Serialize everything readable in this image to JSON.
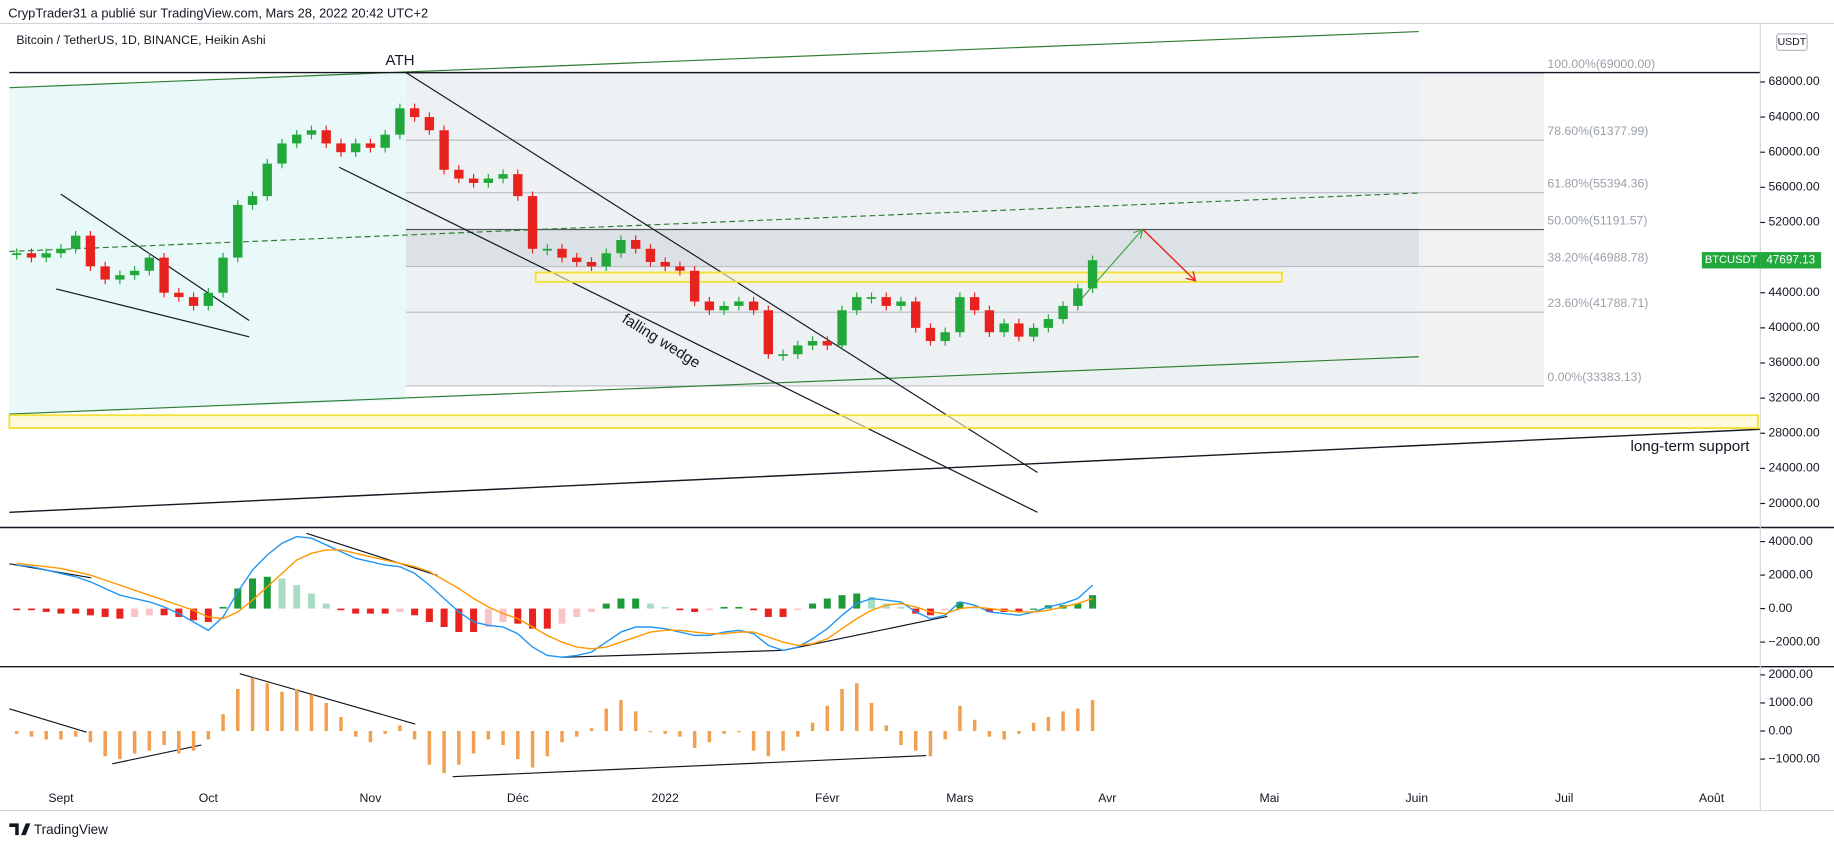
{
  "header": "CrypTrader31 a publié sur TradingView.com, Mars 28, 2022 20:42 UTC+2",
  "footer": "TradingView",
  "chart_data": [
    {
      "type": "candlestick",
      "title": "Bitcoin / TetherUS, 1D, BINANCE, Heikin Ashi",
      "currency": "USDT",
      "symbol_tag": "BTCUSDT",
      "up_color": "#22a83a",
      "down_color": "#e8221e",
      "annotations": [
        "ATH",
        "falling wedge",
        "long-term support"
      ],
      "categories": [
        null,
        null,
        null,
        "Sept",
        null,
        null,
        null,
        null,
        null,
        null,
        null,
        null,
        null,
        "Oct",
        null,
        null,
        null,
        null,
        null,
        null,
        null,
        null,
        null,
        null,
        "Nov",
        null,
        null,
        null,
        null,
        null,
        null,
        null,
        null,
        null,
        "Déc",
        null,
        null,
        null,
        null,
        null,
        null,
        null,
        null,
        null,
        "2022",
        null,
        null,
        null,
        null,
        null,
        null,
        null,
        null,
        null,
        null,
        "Févr",
        null,
        null,
        null,
        null,
        null,
        null,
        null,
        null,
        "Mars",
        null,
        null,
        null,
        null,
        null,
        null,
        null,
        null,
        null,
        "Avr",
        null,
        null,
        null,
        null,
        null,
        null,
        null,
        null,
        null,
        null,
        "Mai",
        null,
        null,
        null,
        null,
        null,
        null,
        null,
        null,
        null,
        "Juin",
        null,
        null,
        null,
        null,
        null,
        null,
        null,
        null,
        null,
        "Juil",
        null,
        null,
        null,
        null,
        null,
        null,
        null,
        null,
        null,
        "Août",
        null,
        null
      ],
      "values": [
        48500,
        48000,
        48500,
        49000,
        50500,
        47000,
        45500,
        46000,
        46500,
        48000,
        44000,
        43500,
        42500,
        44000,
        48000,
        54000,
        55000,
        58700,
        61000,
        62000,
        62500,
        61000,
        60000,
        61000,
        60500,
        62000,
        65000,
        64000,
        62500,
        58000,
        57000,
        56500,
        57000,
        57500,
        55000,
        49000,
        49000,
        48000,
        47500,
        47000,
        48500,
        50000,
        49000,
        47500,
        47000,
        46500,
        43000,
        42000,
        42500,
        43000,
        42000,
        37000,
        37000,
        38000,
        38500,
        38000,
        42000,
        43500,
        43500,
        42500,
        43000,
        40000,
        38500,
        39500,
        43500,
        42000,
        39500,
        40500,
        39000,
        40000,
        41000,
        42500,
        44500,
        47697.13,
        null,
        null,
        null,
        null,
        null,
        null,
        null,
        null,
        null,
        null,
        null,
        null,
        null,
        null,
        null,
        null,
        null,
        null,
        null,
        null,
        null,
        null,
        null,
        null,
        null,
        null,
        null,
        null,
        null,
        null,
        null,
        null,
        null,
        null,
        null,
        null,
        null,
        null,
        null,
        null,
        null,
        null,
        null,
        null
      ],
      "ylim": [
        17400,
        74400
      ],
      "yticks": [
        {
          "value": 20000,
          "label": "20000.00"
        },
        {
          "value": 24000,
          "label": "24000.00"
        },
        {
          "value": 28000,
          "label": "28000.00"
        },
        {
          "value": 32000,
          "label": "32000.00"
        },
        {
          "value": 36000,
          "label": "36000.00"
        },
        {
          "value": 40000,
          "label": "40000.00"
        },
        {
          "value": 44000,
          "label": "44000.00"
        },
        {
          "value": 48000,
          "label": "48000.00"
        },
        {
          "value": 52000,
          "label": "52000.00"
        },
        {
          "value": 56000,
          "label": "56000.00"
        },
        {
          "value": 60000,
          "label": "60000.00"
        },
        {
          "value": 64000,
          "label": "64000.00"
        },
        {
          "value": 68000,
          "label": "68000.00"
        }
      ],
      "fib_levels": [
        {
          "value": 69000,
          "label": "100.00%(69000.00)"
        },
        {
          "value": 61377.99,
          "label": "78.60%(61377.99)"
        },
        {
          "value": 55394.36,
          "label": "61.80%(55394.36)"
        },
        {
          "value": 51191.57,
          "label": "50.00%(51191.57)"
        },
        {
          "value": 46988.78,
          "label": "38.20%(46988.78)"
        },
        {
          "value": 41788.71,
          "label": "23.60%(41788.71)"
        },
        {
          "value": 33383.13,
          "label": "0.00%(33383.13)"
        }
      ]
    },
    {
      "type": "macd",
      "colors": [
        "#1f9a3a",
        "#a8dcc4",
        "#e8221e",
        "#f8c4c8"
      ],
      "values": [
        -100,
        -100,
        -200,
        -300,
        -300,
        -400,
        -500,
        -600,
        -500,
        -400,
        -400,
        -500,
        -700,
        -800,
        100,
        1200,
        1800,
        1900,
        1800,
        1400,
        900,
        300,
        -100,
        -300,
        -300,
        -300,
        -200,
        -400,
        -800,
        -1100,
        -1400,
        -1400,
        -1100,
        -800,
        -900,
        -1200,
        -1200,
        -900,
        -500,
        -200,
        300,
        600,
        600,
        300,
        100,
        -100,
        -200,
        -100,
        100,
        100,
        -100,
        -500,
        -500,
        -100,
        300,
        600,
        800,
        900,
        700,
        300,
        100,
        -300,
        -400,
        -100,
        400,
        100,
        -200,
        -200,
        -200,
        0,
        200,
        200,
        300,
        800,
        null,
        null,
        null,
        null,
        null,
        null,
        null,
        null,
        null,
        null,
        null,
        null,
        null,
        null,
        null,
        null,
        null,
        null,
        null,
        null,
        null,
        null,
        null,
        null,
        null,
        null,
        null,
        null,
        null,
        null,
        null,
        null,
        null,
        null,
        null,
        null,
        null,
        null,
        null,
        null,
        null,
        null,
        null,
        null
      ],
      "series": [
        {
          "color": "#2196f3",
          "values": [
            2600,
            2500,
            2300,
            2100,
            1900,
            1600,
            1200,
            800,
            600,
            400,
            100,
            -300,
            -800,
            -1300,
            -500,
            1000,
            2300,
            3200,
            3900,
            4300,
            4200,
            3800,
            3400,
            3000,
            2800,
            2600,
            2500,
            2100,
            1400,
            600,
            -200,
            -800,
            -1000,
            -1100,
            -1500,
            -2300,
            -2800,
            -2900,
            -2800,
            -2600,
            -2000,
            -1400,
            -1100,
            -1100,
            -1200,
            -1400,
            -1600,
            -1600,
            -1400,
            -1300,
            -1500,
            -2200,
            -2500,
            -2300,
            -1800,
            -1200,
            -400,
            300,
            600,
            500,
            400,
            -200,
            -600,
            -400,
            400,
            200,
            -200,
            -300,
            -400,
            -200,
            100,
            300,
            600,
            1400,
            null,
            null,
            null,
            null,
            null,
            null,
            null,
            null,
            null,
            null,
            null,
            null,
            null,
            null,
            null,
            null,
            null,
            null,
            null,
            null,
            null,
            null,
            null,
            null,
            null,
            null,
            null,
            null,
            null,
            null,
            null,
            null,
            null,
            null,
            null,
            null,
            null,
            null,
            null,
            null,
            null,
            null,
            null,
            null
          ]
        },
        {
          "color": "#ff9800",
          "values": [
            2700,
            2600,
            2500,
            2400,
            2200,
            2000,
            1700,
            1400,
            1100,
            800,
            500,
            200,
            -100,
            -500,
            -600,
            -200,
            500,
            1300,
            2100,
            2900,
            3300,
            3500,
            3500,
            3300,
            3100,
            2900,
            2700,
            2500,
            2200,
            1700,
            1200,
            600,
            100,
            -300,
            -600,
            -1100,
            -1600,
            -2000,
            -2300,
            -2400,
            -2300,
            -2000,
            -1700,
            -1400,
            -1300,
            -1300,
            -1400,
            -1500,
            -1500,
            -1400,
            -1400,
            -1700,
            -2000,
            -2200,
            -2100,
            -1800,
            -1200,
            -600,
            -100,
            200,
            300,
            100,
            -200,
            -300,
            0,
            100,
            0,
            -100,
            -200,
            -200,
            -100,
            100,
            300,
            600,
            null,
            null,
            null,
            null,
            null,
            null,
            null,
            null,
            null,
            null,
            null,
            null,
            null,
            null,
            null,
            null,
            null,
            null,
            null,
            null,
            null,
            null,
            null,
            null,
            null,
            null,
            null,
            null,
            null,
            null,
            null,
            null,
            null,
            null,
            null,
            null,
            null,
            null,
            null,
            null,
            null,
            null,
            null,
            null
          ]
        }
      ],
      "ylim": [
        -3400,
        4770
      ],
      "yticks": [
        {
          "value": -2000,
          "label": "−2000.00"
        },
        {
          "value": 0,
          "label": "0.00"
        },
        {
          "value": 2000,
          "label": "2000.00"
        },
        {
          "value": 4000,
          "label": "4000.00"
        }
      ]
    },
    {
      "type": "histogram-lines",
      "color": "#f0a050",
      "values": [
        -100,
        -200,
        -300,
        -300,
        -200,
        -400,
        -900,
        -1000,
        -800,
        -700,
        -500,
        -800,
        -700,
        -300,
        600,
        1500,
        1900,
        1700,
        1400,
        1500,
        1300,
        1000,
        500,
        -200,
        -400,
        -100,
        200,
        -300,
        -1200,
        -1500,
        -1200,
        -800,
        -300,
        -500,
        -1000,
        -1300,
        -900,
        -400,
        -200,
        100,
        800,
        1100,
        700,
        0,
        -100,
        -200,
        -600,
        -400,
        -100,
        0,
        -700,
        -900,
        -700,
        -200,
        300,
        900,
        1500,
        1700,
        1000,
        200,
        -500,
        -700,
        -900,
        -300,
        900,
        400,
        -200,
        -300,
        -100,
        300,
        500,
        700,
        800,
        1100,
        null,
        null,
        null,
        null,
        null,
        null,
        null,
        null,
        null,
        null,
        null,
        null,
        null,
        null,
        null,
        null,
        null,
        null,
        null,
        null,
        null,
        null,
        null,
        null,
        null,
        null,
        null,
        null,
        null,
        null,
        null,
        null,
        null,
        null,
        null,
        null,
        null,
        null,
        null,
        null,
        null,
        null,
        null,
        null
      ],
      "ylim": [
        -2250,
        2250
      ],
      "yticks": [
        {
          "value": -1000,
          "label": "−1000.00"
        },
        {
          "value": 0,
          "label": "0.00"
        },
        {
          "value": 1000,
          "label": "1000.00"
        },
        {
          "value": 2000,
          "label": "2000.00"
        }
      ]
    }
  ]
}
